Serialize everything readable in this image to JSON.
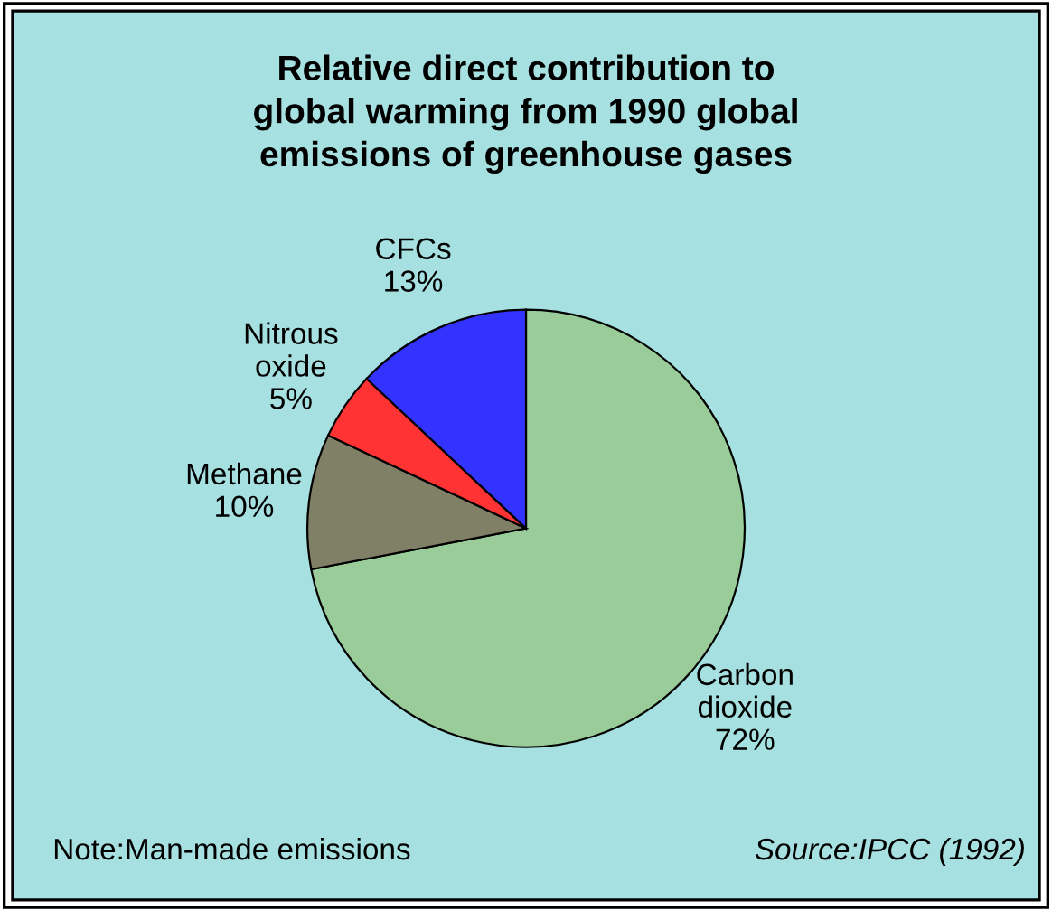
{
  "chart_data": {
    "type": "pie",
    "title": "Relative direct contribution to\nglobal warming from 1990 global\nemissions of greenhouse gases",
    "categories": [
      "Carbon dioxide",
      "Methane",
      "Nitrous oxide",
      "CFCs"
    ],
    "values": [
      72,
      10,
      5,
      13
    ],
    "value_labels": [
      "72%",
      "10%",
      "5%",
      "13%"
    ],
    "colors": [
      "#99cc99",
      "#808066",
      "#ff3333",
      "#3333ff"
    ],
    "legend": false,
    "annotations": [
      "Note:Man-made emissions",
      "Source:IPCC (1992)"
    ]
  }
}
